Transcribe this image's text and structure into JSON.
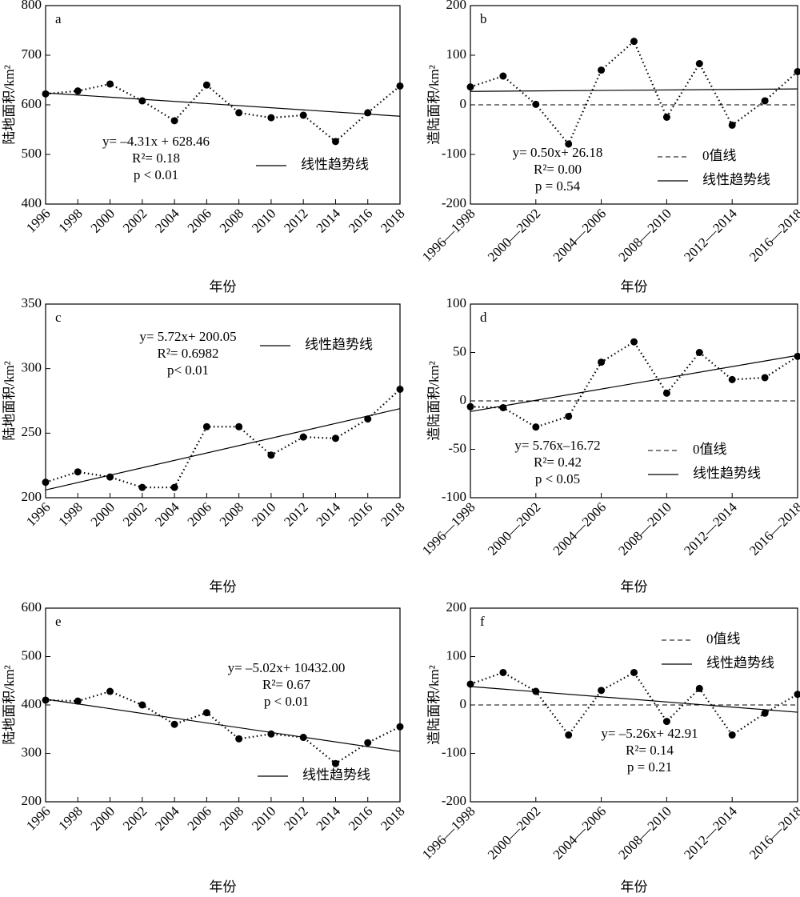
{
  "chart_data": [
    {
      "type": "line",
      "panel_label": "a",
      "y_label": "陆地面积/km²",
      "x_label": "年份",
      "categories": [
        "1996",
        "1998",
        "2000",
        "2002",
        "2004",
        "2006",
        "2008",
        "2010",
        "2012",
        "2014",
        "2016",
        "2018"
      ],
      "series": [
        {
          "color": "#000000",
          "values": [
            622,
            628,
            642,
            608,
            568,
            640,
            584,
            574,
            579,
            526,
            584,
            638
          ]
        }
      ],
      "trend": {
        "name": "线性趋势线",
        "values": [
          624,
          577
        ]
      },
      "annotation": [
        "y= –4.31x + 628.46",
        "R²= 0.18",
        "p < 0.01"
      ],
      "ylim": [
        400,
        800
      ],
      "yticks": [
        400,
        500,
        600,
        700,
        800
      ]
    },
    {
      "type": "line",
      "panel_label": "b",
      "y_label": "造陆面积/km²",
      "x_label": "年份",
      "categories": [
        "1996—1998",
        null,
        "2000—2002",
        null,
        "2004—2006",
        null,
        "2008—2010",
        null,
        "2012—2014",
        null,
        "2016—2018"
      ],
      "series": [
        {
          "color": "#000000",
          "values": [
            36,
            58,
            1,
            -79,
            70,
            128,
            -25,
            83,
            -41,
            8,
            67
          ]
        }
      ],
      "trend": {
        "name": "线性趋势线",
        "values": [
          27,
          32
        ]
      },
      "reference_line": {
        "name": "0值线",
        "value": 0
      },
      "annotation": [
        "y= 0.50x+ 26.18",
        "R²= 0.00",
        "p = 0.54"
      ],
      "ylim": [
        -200,
        200
      ],
      "yticks": [
        -200,
        -100,
        0,
        100,
        200
      ]
    },
    {
      "type": "line",
      "panel_label": "c",
      "y_label": "陆地面积/km²",
      "x_label": "年份",
      "categories": [
        "1996",
        "1998",
        "2000",
        "2002",
        "2004",
        "2006",
        "2008",
        "2010",
        "2012",
        "2014",
        "2016",
        "2018"
      ],
      "series": [
        {
          "color": "#000000",
          "values": [
            212,
            220,
            216,
            208,
            208,
            255,
            255,
            233,
            247,
            246,
            261,
            284
          ]
        }
      ],
      "trend": {
        "name": "线性趋势线",
        "values": [
          206,
          269
        ]
      },
      "annotation": [
        "y= 5.72x+ 200.05",
        "R²= 0.6982",
        "p< 0.01"
      ],
      "ylim": [
        200,
        350
      ],
      "yticks": [
        200,
        250,
        300,
        350
      ]
    },
    {
      "type": "line",
      "panel_label": "d",
      "y_label": "造陆面积/km²",
      "x_label": "年份",
      "categories": [
        "1996—1998",
        null,
        "2000—2002",
        null,
        "2004—2006",
        null,
        "2008—2010",
        null,
        "2012—2014",
        null,
        "2016—2018"
      ],
      "series": [
        {
          "color": "#000000",
          "values": [
            -6,
            -7,
            -27,
            -16,
            40,
            61,
            8,
            50,
            22,
            24,
            46
          ]
        }
      ],
      "trend": {
        "name": "线性趋势线",
        "values": [
          -11,
          47
        ]
      },
      "reference_line": {
        "name": "0值线",
        "value": 0
      },
      "annotation": [
        "y= 5.76x–16.72",
        "R²= 0.42",
        "p < 0.05"
      ],
      "ylim": [
        -100,
        100
      ],
      "yticks": [
        -100,
        -50,
        0,
        50,
        100
      ]
    },
    {
      "type": "line",
      "panel_label": "e",
      "y_label": "陆地面积/km²",
      "x_label": "年份",
      "categories": [
        "1996",
        "1998",
        "2000",
        "2002",
        "2004",
        "2006",
        "2008",
        "2010",
        "2012",
        "2014",
        "2016",
        "2018"
      ],
      "series": [
        {
          "color": "#000000",
          "values": [
            410,
            408,
            428,
            400,
            360,
            384,
            330,
            340,
            333,
            279,
            322,
            355
          ]
        }
      ],
      "trend": {
        "name": "线性趋势线",
        "values": [
          412,
          304
        ]
      },
      "annotation": [
        "y= –5.02x+ 10432.00",
        "R²= 0.67",
        "p < 0.01"
      ],
      "ylim": [
        200,
        600
      ],
      "yticks": [
        200,
        300,
        400,
        500,
        600
      ]
    },
    {
      "type": "line",
      "panel_label": "f",
      "y_label": "造陆面积/km²",
      "x_label": "年份",
      "categories": [
        "1996—1998",
        null,
        "2000—2002",
        null,
        "2004—2006",
        null,
        "2008—2010",
        null,
        "2012—2014",
        null,
        "2016—2018"
      ],
      "series": [
        {
          "color": "#000000",
          "values": [
            43,
            67,
            28,
            -62,
            30,
            67,
            -34,
            34,
            -62,
            -17,
            22
          ]
        }
      ],
      "trend": {
        "name": "线性趋势线",
        "values": [
          38,
          -15
        ]
      },
      "reference_line": {
        "name": "0值线",
        "value": 0
      },
      "annotation": [
        "y= –5.26x+ 42.91",
        "R²= 0.14",
        "p = 0.21"
      ],
      "ylim": [
        -200,
        200
      ],
      "yticks": [
        -200,
        -100,
        0,
        100,
        200
      ]
    }
  ]
}
